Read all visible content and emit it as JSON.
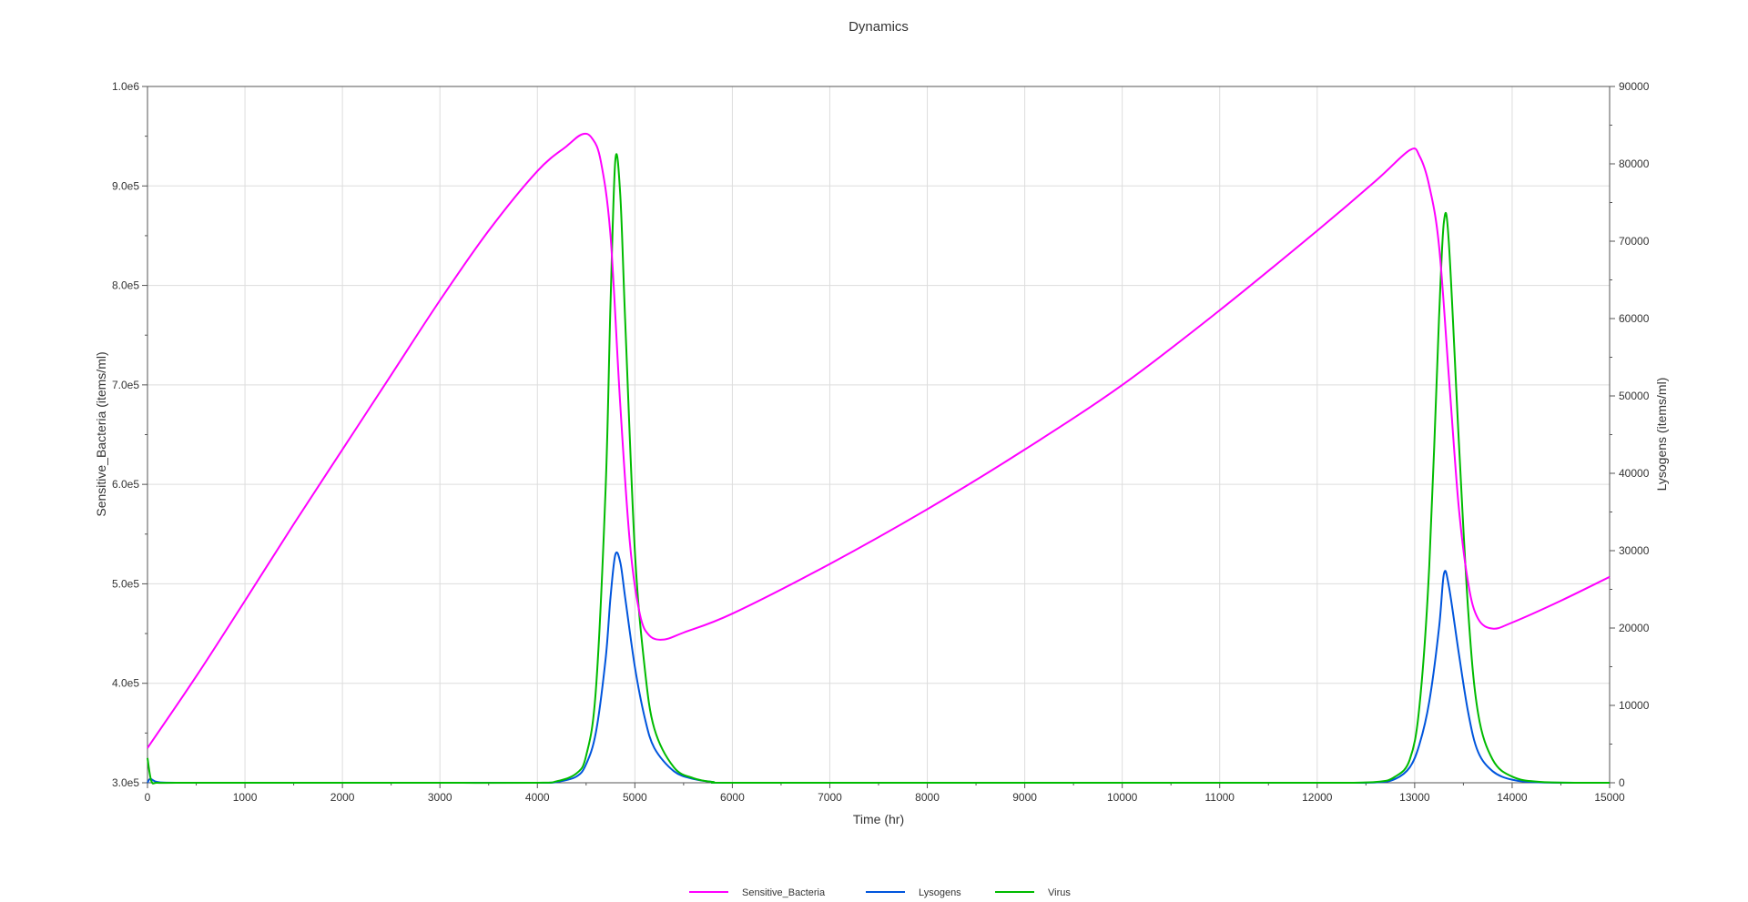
{
  "chart_data": {
    "type": "line",
    "title": "Dynamics",
    "xlabel": "Time (hr)",
    "ylabel": "Sensitive_Bacteria (items/ml)",
    "y2label": "Lysogens (items/ml)",
    "xlim": [
      0,
      15000
    ],
    "ylim": [
      300000,
      1000000
    ],
    "y2lim": [
      0,
      90000
    ],
    "grid": true,
    "legend_position": "bottom",
    "x_ticks": [
      "0",
      "1000",
      "2000",
      "3000",
      "4000",
      "5000",
      "6000",
      "7000",
      "8000",
      "9000",
      "10000",
      "11000",
      "12000",
      "13000",
      "14000",
      "15000"
    ],
    "y_ticks": [
      "3.0e5",
      "4.0e5",
      "5.0e5",
      "6.0e5",
      "7.0e5",
      "8.0e5",
      "9.0e5",
      "1.0e6"
    ],
    "y2_ticks": [
      "0",
      "10000",
      "20000",
      "30000",
      "40000",
      "50000",
      "60000",
      "70000",
      "80000",
      "90000"
    ],
    "colors": {
      "Sensitive_Bacteria": "#ff00ff",
      "Lysogens": "#0055dd",
      "Virus": "#00bb00"
    },
    "series": [
      {
        "name": "Sensitive_Bacteria",
        "axis": "left",
        "x": [
          0,
          500,
          1000,
          1500,
          2000,
          2500,
          3000,
          3500,
          4000,
          4300,
          4460,
          4560,
          4650,
          4750,
          4850,
          4950,
          5050,
          5150,
          5300,
          5500,
          6000,
          7000,
          8000,
          9000,
          10000,
          11000,
          12000,
          12600,
          12950,
          13050,
          13150,
          13250,
          13350,
          13450,
          13550,
          13650,
          13800,
          14000,
          14500,
          15000
        ],
        "y": [
          335000,
          407000,
          483000,
          560000,
          635000,
          710000,
          785000,
          855000,
          915000,
          940000,
          952000,
          948000,
          925000,
          850000,
          680000,
          540000,
          470000,
          448000,
          444000,
          451000,
          470000,
          520000,
          575000,
          635000,
          700000,
          775000,
          855000,
          905000,
          936000,
          930000,
          900000,
          840000,
          710000,
          580000,
          500000,
          465000,
          455000,
          461000,
          483000,
          507000
        ]
      },
      {
        "name": "Lysogens",
        "axis": "right",
        "x": [
          0,
          30,
          100,
          300,
          1000,
          2000,
          3000,
          4000,
          4200,
          4400,
          4500,
          4600,
          4700,
          4750,
          4800,
          4850,
          4900,
          5000,
          5100,
          5200,
          5400,
          5600,
          5800,
          6000,
          8000,
          10000,
          12000,
          12600,
          12800,
          12950,
          13050,
          13150,
          13250,
          13300,
          13350,
          13450,
          13550,
          13650,
          13800,
          14000,
          14300,
          15000
        ],
        "y": [
          0,
          500,
          100,
          0,
          0,
          0,
          0,
          0,
          100,
          800,
          2400,
          6500,
          16000,
          24000,
          29500,
          28500,
          24000,
          15000,
          8500,
          4500,
          1500,
          500,
          100,
          0,
          0,
          0,
          0,
          50,
          500,
          2000,
          5000,
          10500,
          20000,
          27000,
          25500,
          17000,
          9000,
          4000,
          1500,
          400,
          50,
          0
        ]
      },
      {
        "name": "Virus",
        "axis": "right",
        "x": [
          0,
          40,
          100,
          300,
          1000,
          2000,
          3000,
          4000,
          4200,
          4400,
          4500,
          4600,
          4700,
          4750,
          4800,
          4850,
          4900,
          5000,
          5100,
          5200,
          5400,
          5600,
          5800,
          6000,
          8000,
          10000,
          12000,
          12600,
          12800,
          12950,
          13050,
          13150,
          13250,
          13300,
          13350,
          13450,
          13550,
          13650,
          13800,
          14000,
          14300,
          15000
        ],
        "y": [
          3200,
          200,
          0,
          0,
          0,
          0,
          0,
          0,
          200,
          1200,
          3500,
          12000,
          38000,
          62000,
          80500,
          76000,
          60000,
          30000,
          15000,
          7000,
          2000,
          600,
          100,
          0,
          0,
          0,
          0,
          100,
          800,
          3000,
          10000,
          28000,
          60000,
          72500,
          70000,
          45000,
          22000,
          9000,
          3000,
          800,
          100,
          0
        ]
      }
    ]
  }
}
